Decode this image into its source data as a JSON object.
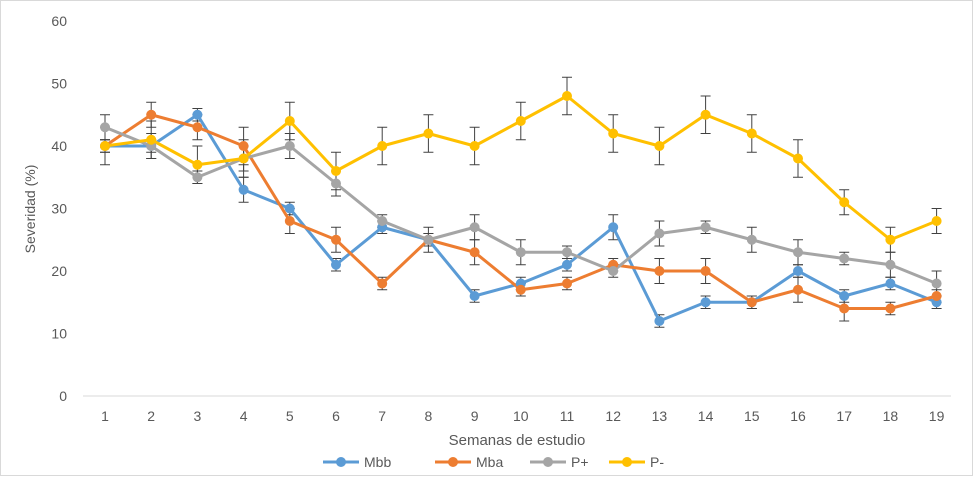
{
  "chart_data": {
    "type": "line",
    "title": "",
    "xlabel": "Semanas de estudio",
    "ylabel": "Severidad (%)",
    "ylim": [
      0,
      60
    ],
    "yticks": [
      0,
      10,
      20,
      30,
      40,
      50,
      60
    ],
    "grid": false,
    "legend_position": "bottom",
    "x": [
      1,
      2,
      3,
      4,
      5,
      6,
      7,
      8,
      9,
      10,
      11,
      12,
      13,
      14,
      15,
      16,
      17,
      18,
      19
    ],
    "series": [
      {
        "name": "Mbb",
        "color": "#5b9bd5",
        "values": [
          40,
          40,
          45,
          33,
          30,
          21,
          27,
          25,
          16,
          18,
          21,
          27,
          12,
          15,
          15,
          20,
          16,
          18,
          15
        ],
        "errors": [
          1,
          1,
          1,
          2,
          1,
          1,
          1,
          1,
          1,
          1,
          1,
          2,
          1,
          1,
          1,
          1,
          1,
          1,
          1
        ]
      },
      {
        "name": "Mba",
        "color": "#ed7d31",
        "values": [
          40,
          45,
          43,
          40,
          28,
          25,
          18,
          25,
          23,
          17,
          18,
          21,
          20,
          20,
          15,
          17,
          14,
          14,
          16
        ],
        "errors": [
          1,
          2,
          2,
          3,
          2,
          2,
          1,
          2,
          2,
          1,
          1,
          1,
          2,
          2,
          1,
          2,
          2,
          1,
          1
        ]
      },
      {
        "name": "P+",
        "color": "#a5a5a5",
        "values": [
          43,
          40,
          35,
          38,
          40,
          34,
          28,
          25,
          27,
          23,
          23,
          20,
          26,
          27,
          25,
          23,
          22,
          21,
          18
        ],
        "errors": [
          2,
          2,
          1,
          2,
          2,
          2,
          1,
          1,
          2,
          2,
          1,
          1,
          2,
          1,
          2,
          2,
          1,
          2,
          2
        ]
      },
      {
        "name": "P-",
        "color": "#ffc000",
        "values": [
          40,
          41,
          37,
          38,
          44,
          36,
          40,
          42,
          40,
          44,
          48,
          42,
          40,
          45,
          42,
          38,
          31,
          25,
          28
        ],
        "errors": [
          3,
          3,
          3,
          3,
          3,
          3,
          3,
          3,
          3,
          3,
          3,
          3,
          3,
          3,
          3,
          3,
          2,
          2,
          2
        ]
      }
    ]
  }
}
